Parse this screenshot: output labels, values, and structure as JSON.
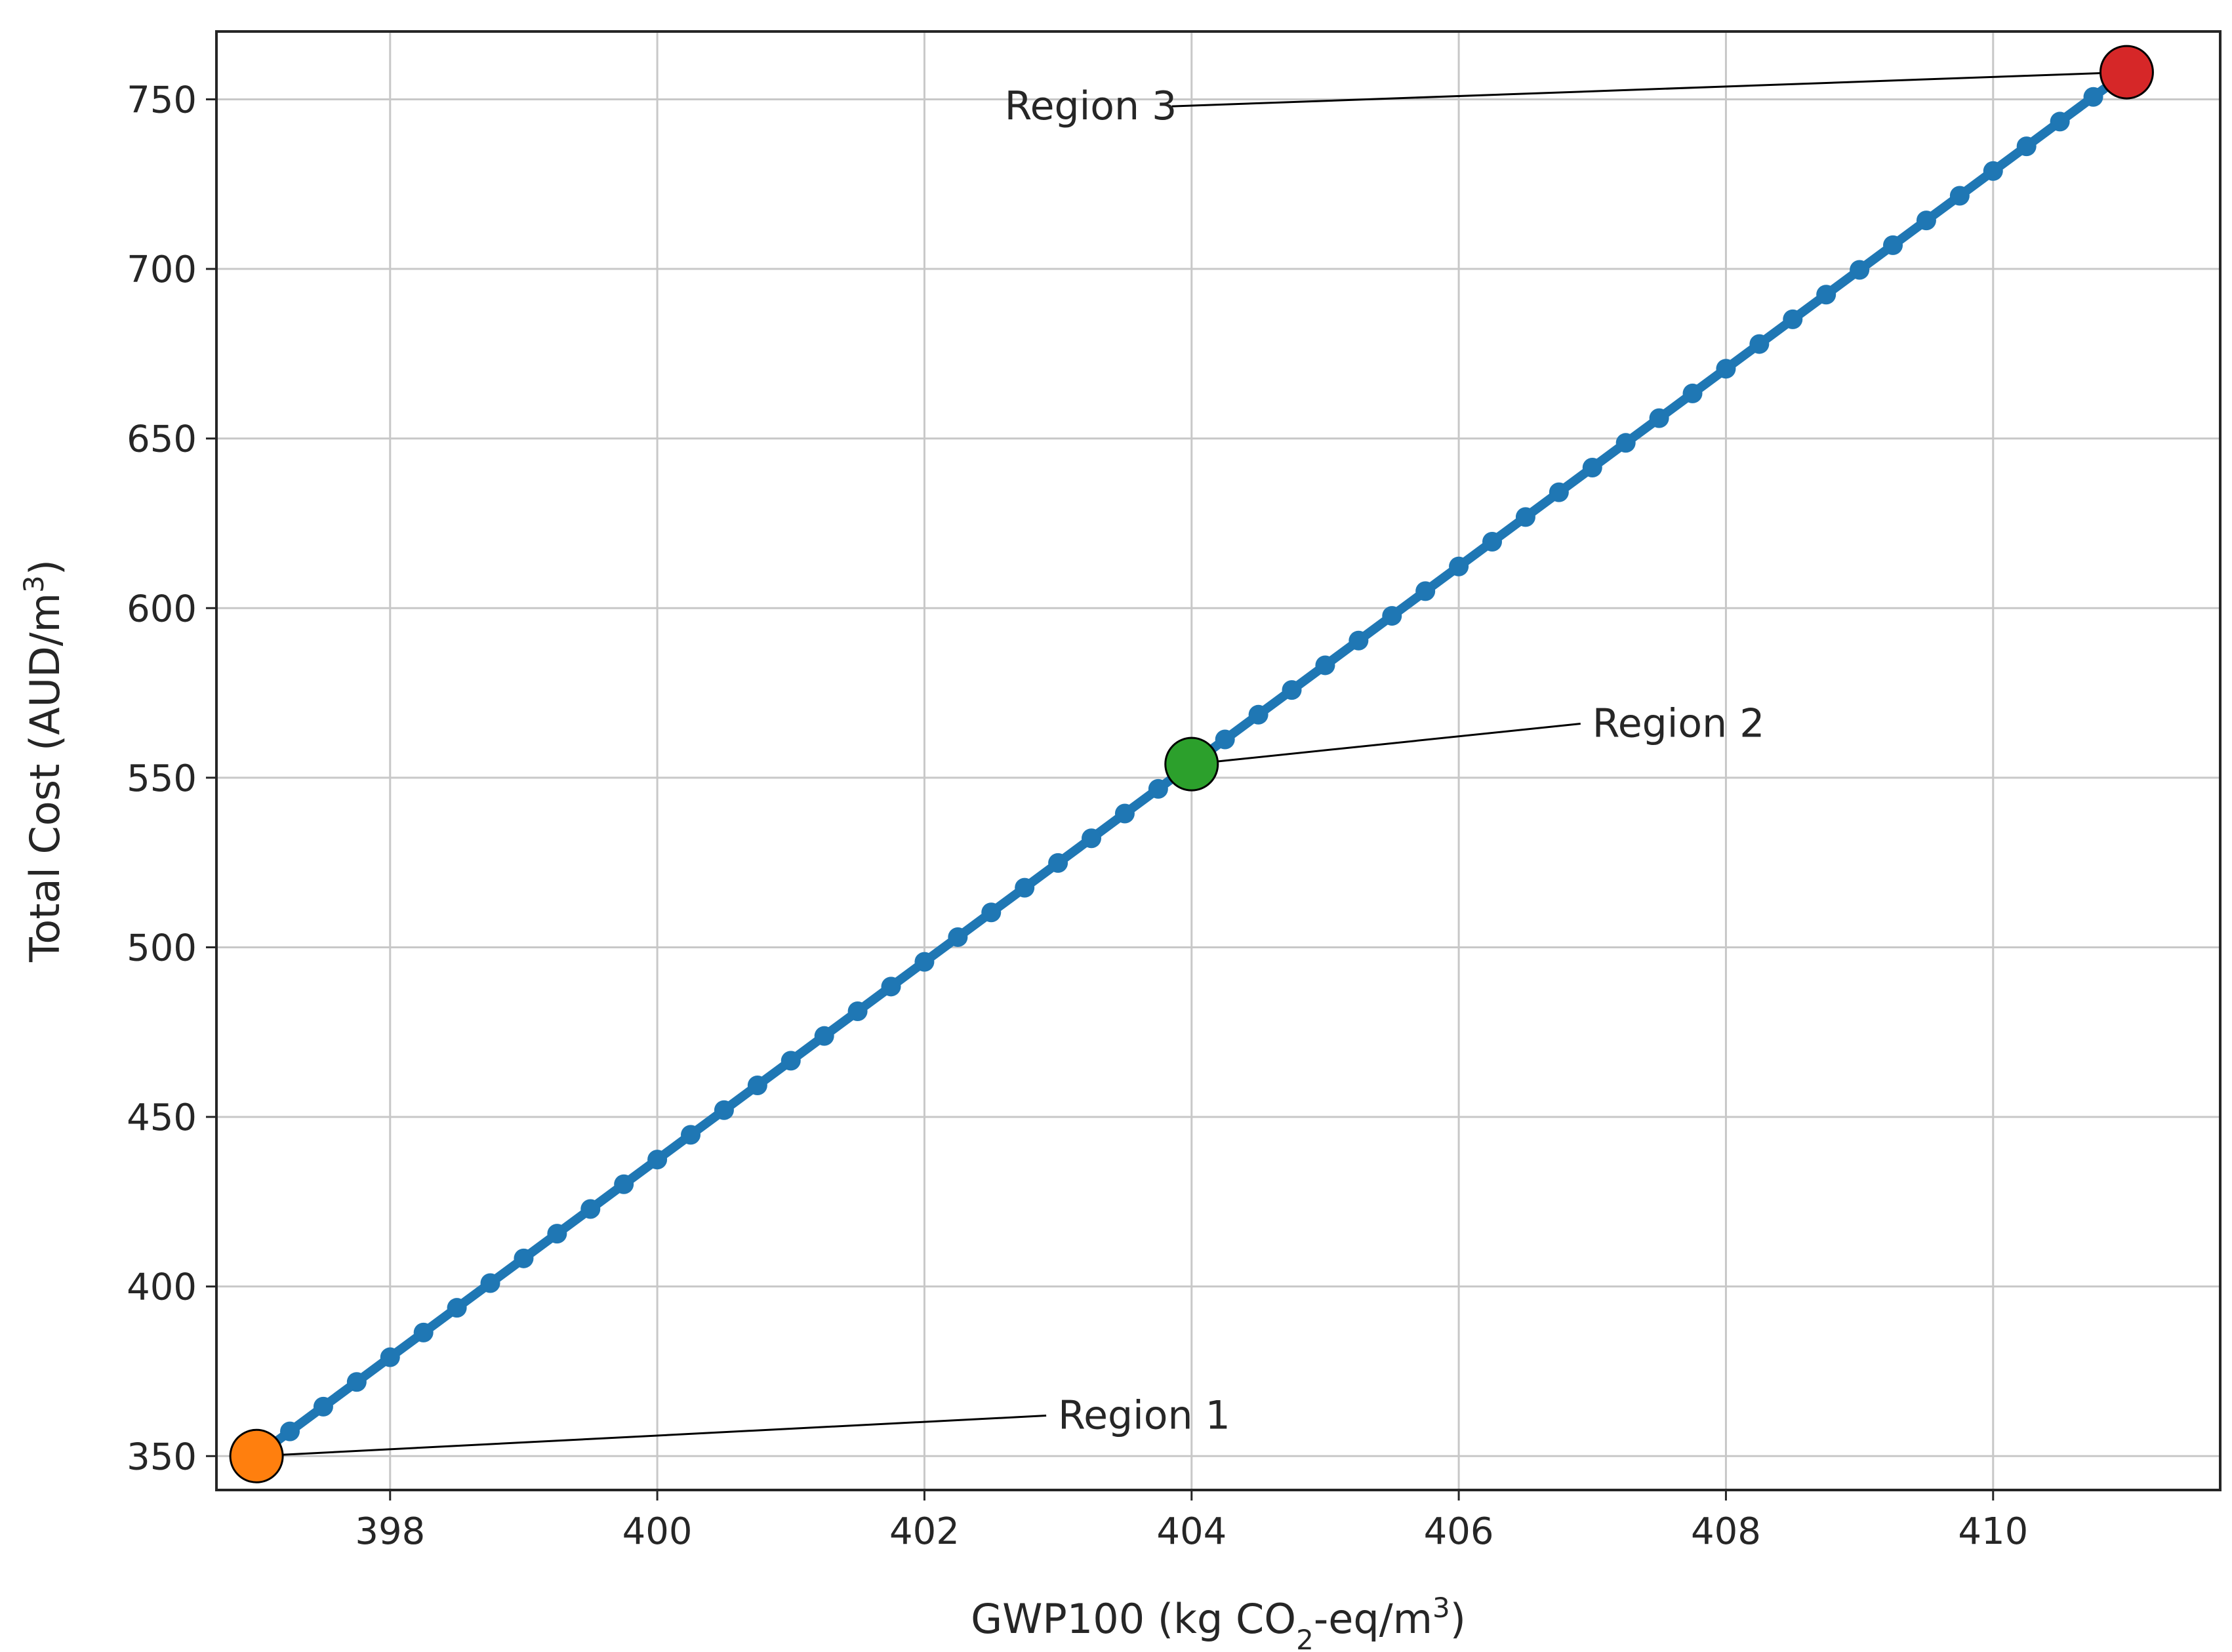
{
  "chart_data": {
    "type": "line",
    "xlabel": {
      "pre": "GWP100 (kg CO",
      "sub": "2",
      "mid": "-eq/m",
      "sup": "3",
      "post": ")"
    },
    "ylabel": {
      "pre": "Total Cost (AUD/m",
      "sup": "3",
      "post": ")"
    },
    "xlim": [
      396.7,
      411.7
    ],
    "ylim": [
      340,
      770
    ],
    "x_ticks": [
      398,
      400,
      402,
      404,
      406,
      408,
      410
    ],
    "x_tick_labels": [
      "398",
      "400",
      "402",
      "404",
      "406",
      "408",
      "410"
    ],
    "y_ticks": [
      350,
      400,
      450,
      500,
      550,
      600,
      650,
      700,
      750
    ],
    "y_tick_labels": [
      "350",
      "400",
      "450",
      "500",
      "550",
      "600",
      "650",
      "700",
      "750"
    ],
    "grid": true,
    "series": [
      {
        "color": "#1f77b4",
        "x_start": 397,
        "x_end": 411,
        "y_start": 350,
        "y_end": 758,
        "n_points": 57
      }
    ],
    "highlights": [
      {
        "label": "Region 1",
        "x": 397,
        "y": 350,
        "color": "#ff7f0e",
        "label_x": 403.0,
        "label_y": 360
      },
      {
        "label": "Region 2",
        "x": 404,
        "y": 554,
        "color": "#2ca02c",
        "label_x": 407.0,
        "label_y": 564
      },
      {
        "label": "Region 3",
        "x": 411,
        "y": 758,
        "color": "#d62728",
        "label_x": 402.6,
        "label_y": 746
      }
    ]
  }
}
